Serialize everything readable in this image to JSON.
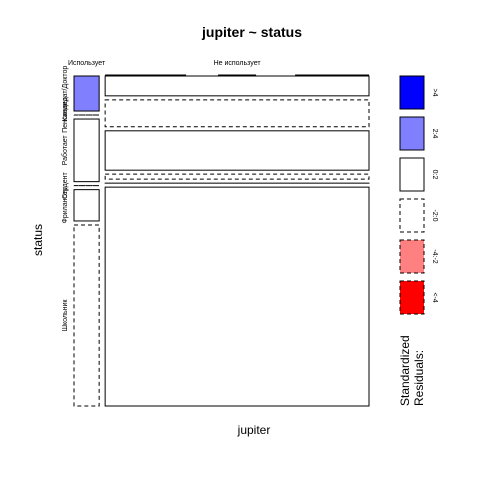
{
  "chart_data": {
    "type": "mosaic",
    "title": "jupiter ~ status",
    "xlabel": "jupiter",
    "ylabel": "status",
    "x_levels": [
      "Использует",
      "Не использует"
    ],
    "y_levels": [
      "Кандидат/Доктор",
      "Пенсионер",
      "Работает",
      "Студент",
      "Фрилансер",
      "Школьник"
    ],
    "col_proportions": [
      0.087,
      0.913
    ],
    "cells": [
      {
        "x": "Использует",
        "y": "Кандидат/Доктор",
        "proportion": 0.113,
        "residual_class": "2:4"
      },
      {
        "x": "Использует",
        "y": "Пенсионер",
        "proportion": 0.0,
        "residual_class": "-2:0"
      },
      {
        "x": "Использует",
        "y": "Работает",
        "proportion": 0.202,
        "residual_class": "0:2"
      },
      {
        "x": "Использует",
        "y": "Студент",
        "proportion": 0.0,
        "residual_class": "-2:0"
      },
      {
        "x": "Использует",
        "y": "Фрилансер",
        "proportion": 0.101,
        "residual_class": "0:2"
      },
      {
        "x": "Использует",
        "y": "Школьник",
        "proportion": 0.584,
        "residual_class": "-2:0"
      },
      {
        "x": "Не использует",
        "y": "Кандидат/Доктор",
        "proportion": 0.064,
        "residual_class": "0:2"
      },
      {
        "x": "Не использует",
        "y": "Пенсионер",
        "proportion": 0.087,
        "residual_class": "-2:0"
      },
      {
        "x": "Не использует",
        "y": "Работает",
        "proportion": 0.127,
        "residual_class": "0:2"
      },
      {
        "x": "Не использует",
        "y": "Студент",
        "proportion": 0.016,
        "residual_class": "-2:0"
      },
      {
        "x": "Не использует",
        "y": "Фрилансер",
        "proportion": 0.0,
        "residual_class": "0:2"
      },
      {
        "x": "Не использует",
        "y": "Школьник",
        "proportion": 0.706,
        "residual_class": "0:2"
      }
    ],
    "legend": {
      "title_lines": [
        "Standardized",
        "Residuals:"
      ],
      "entries": [
        {
          "label": ">4",
          "color": "#0000ff",
          "dashed": false
        },
        {
          "label": "2:4",
          "color": "#8080ff",
          "dashed": false
        },
        {
          "label": "0:2",
          "color": "#ffffff",
          "dashed": false
        },
        {
          "label": "-2:0",
          "color": "#ffffff",
          "dashed": true
        },
        {
          "label": "-4:-2",
          "color": "#ff8080",
          "dashed": true
        },
        {
          "label": "<-4",
          "color": "#ff0000",
          "dashed": true
        }
      ]
    }
  }
}
